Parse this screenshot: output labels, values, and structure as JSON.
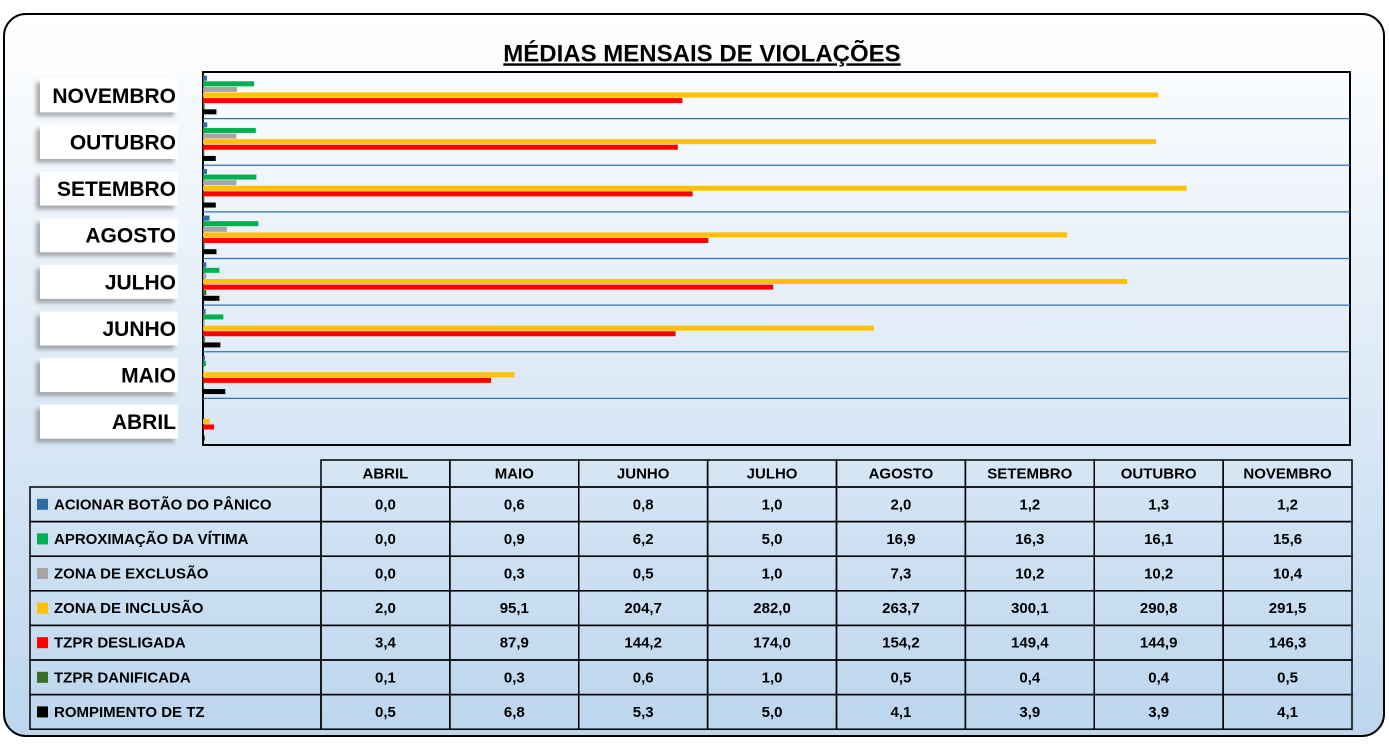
{
  "chart_data": {
    "type": "barh",
    "title": "MÉDIAS MENSAIS DE VIOLAÇÕES",
    "categories": [
      "ABRIL",
      "MAIO",
      "JUNHO",
      "JULHO",
      "AGOSTO",
      "SETEMBRO",
      "OUTUBRO",
      "NOVEMBRO"
    ],
    "xlim": [
      0,
      350
    ],
    "series": [
      {
        "name": "ACIONAR BOTÃO DO PÂNICO",
        "color": "#2e6da4",
        "values": [
          0.0,
          0.6,
          0.8,
          1.0,
          2.0,
          1.2,
          1.3,
          1.2
        ],
        "value_labels": [
          "0,0",
          "0,6",
          "0,8",
          "1,0",
          "2,0",
          "1,2",
          "1,3",
          "1,2"
        ]
      },
      {
        "name": "APROXIMAÇÃO DA VÍTIMA",
        "color": "#00b050",
        "values": [
          0.0,
          0.9,
          6.2,
          5.0,
          16.9,
          16.3,
          16.1,
          15.6
        ],
        "value_labels": [
          "0,0",
          "0,9",
          "6,2",
          "5,0",
          "16,9",
          "16,3",
          "16,1",
          "15,6"
        ]
      },
      {
        "name": "ZONA DE EXCLUSÃO",
        "color": "#a5a5a5",
        "values": [
          0.0,
          0.3,
          0.5,
          1.0,
          7.3,
          10.2,
          10.2,
          10.4
        ],
        "value_labels": [
          "0,0",
          "0,3",
          "0,5",
          "1,0",
          "7,3",
          "10,2",
          "10,2",
          "10,4"
        ]
      },
      {
        "name": "ZONA DE INCLUSÃO",
        "color": "#ffc000",
        "values": [
          2.0,
          95.1,
          204.7,
          282.0,
          263.7,
          300.1,
          290.8,
          291.5
        ],
        "value_labels": [
          "2,0",
          "95,1",
          "204,7",
          "282,0",
          "263,7",
          "300,1",
          "290,8",
          "291,5"
        ]
      },
      {
        "name": "TZPR DESLIGADA",
        "color": "#ff0000",
        "values": [
          3.4,
          87.9,
          144.2,
          174.0,
          154.2,
          149.4,
          144.9,
          146.3
        ],
        "value_labels": [
          "3,4",
          "87,9",
          "144,2",
          "174,0",
          "154,2",
          "149,4",
          "144,9",
          "146,3"
        ]
      },
      {
        "name": "TZPR DANIFICADA",
        "color": "#376d26",
        "values": [
          0.1,
          0.3,
          0.6,
          1.0,
          0.5,
          0.4,
          0.4,
          0.5
        ],
        "value_labels": [
          "0,1",
          "0,3",
          "0,6",
          "1,0",
          "0,5",
          "0,4",
          "0,4",
          "0,5"
        ]
      },
      {
        "name": "ROMPIMENTO DE TZ",
        "color": "#000000",
        "values": [
          0.5,
          6.8,
          5.3,
          5.0,
          4.1,
          3.9,
          3.9,
          4.1
        ],
        "value_labels": [
          "0,5",
          "6,8",
          "5,3",
          "5,0",
          "4,1",
          "3,9",
          "3,9",
          "4,1"
        ]
      }
    ]
  }
}
